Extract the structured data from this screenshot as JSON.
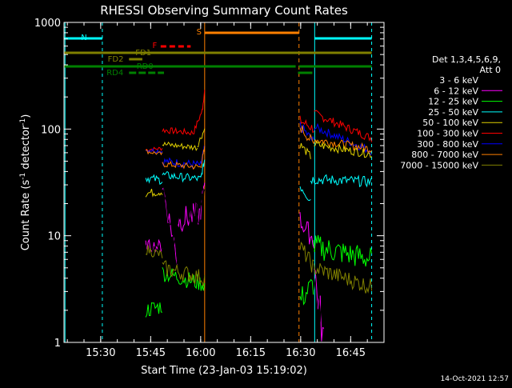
{
  "chart_data": {
    "type": "line",
    "title": "RHESSI Observing Summary Count Rates",
    "xlabel": "Start Time (23-Jan-03 15:19:02)",
    "ylabel_main": "Count Rate (s",
    "ylabel_sup1": "-1",
    "ylabel_mid": " detector",
    "ylabel_sup2": "-1",
    "ylabel_end": ")",
    "y_scale": "log",
    "ylim": [
      1,
      1000
    ],
    "xlim_minutes_after_1519": [
      0,
      40
    ],
    "x_ticks": [
      {
        "label": "15:30",
        "minutes": 11
      },
      {
        "label": "15:45",
        "minutes": 26
      },
      {
        "label": "16:00",
        "minutes": 41
      },
      {
        "label": "16:15",
        "minutes": 56
      },
      {
        "label": "16:30",
        "minutes": 71
      },
      {
        "label": "16:45",
        "minutes": 86
      }
    ],
    "y_ticks": [
      {
        "label": "1",
        "value": 1
      },
      {
        "label": "10",
        "value": 10
      },
      {
        "label": "100",
        "value": 100
      },
      {
        "label": "1000",
        "value": 1000
      }
    ],
    "legend": {
      "header1": "Det 1,3,4,5,6,9,",
      "header2": "Att 0",
      "entries": [
        {
          "label": "3 - 6 keV",
          "color": "#000000"
        },
        {
          "label": "6 - 12 keV",
          "color": "#ff00ff"
        },
        {
          "label": "12 - 25 keV",
          "color": "#00ff00"
        },
        {
          "label": "25 - 50 keV",
          "color": "#00ffff"
        },
        {
          "label": "50 - 100 keV",
          "color": "#e0d000"
        },
        {
          "label": "100 - 300 keV",
          "color": "#ff0000"
        },
        {
          "label": "300 - 800 keV",
          "color": "#0000ff"
        },
        {
          "label": "800 - 7000 keV",
          "color": "#ff8000"
        },
        {
          "label": "7000 - 15000 keV",
          "color": "#808000"
        }
      ]
    },
    "flag_labels": {
      "N": "N",
      "S": "S",
      "F": "F",
      "FD1": "FD1",
      "FD2": "FD2",
      "RD0": "RD0",
      "RD4": "RD4"
    },
    "footer_date": "14-Oct-2021 12:57"
  }
}
